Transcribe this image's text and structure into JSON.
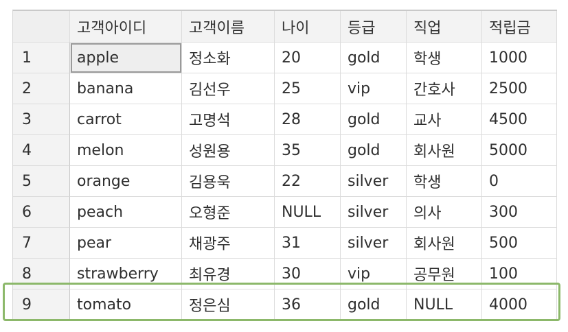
{
  "columns": [
    "고객아이디",
    "고객이름",
    "나이",
    "등급",
    "직업",
    "적립금"
  ],
  "rows": [
    {
      "num": "1",
      "cells": [
        "apple",
        "정소화",
        "20",
        "gold",
        "학생",
        "1000"
      ]
    },
    {
      "num": "2",
      "cells": [
        "banana",
        "김선우",
        "25",
        "vip",
        "간호사",
        "2500"
      ]
    },
    {
      "num": "3",
      "cells": [
        "carrot",
        "고명석",
        "28",
        "gold",
        "교사",
        "4500"
      ]
    },
    {
      "num": "4",
      "cells": [
        "melon",
        "성원용",
        "35",
        "gold",
        "회사원",
        "5000"
      ]
    },
    {
      "num": "5",
      "cells": [
        "orange",
        "김용욱",
        "22",
        "silver",
        "학생",
        "0"
      ]
    },
    {
      "num": "6",
      "cells": [
        "peach",
        "오형준",
        "NULL",
        "silver",
        "의사",
        "300"
      ]
    },
    {
      "num": "7",
      "cells": [
        "pear",
        "채광주",
        "31",
        "silver",
        "회사원",
        "500"
      ]
    },
    {
      "num": "8",
      "cells": [
        "strawberry",
        "최유경",
        "30",
        "vip",
        "공무원",
        "100"
      ]
    },
    {
      "num": "9",
      "cells": [
        "tomato",
        "정은심",
        "36",
        "gold",
        "NULL",
        "4000"
      ]
    }
  ],
  "selected_cell": {
    "row": 1,
    "column": 1
  },
  "highlighted_row": 9,
  "colors": {
    "highlight": "#8cb86a",
    "header_bg": "#f3f3f3",
    "grid_line": "#dcdcdc"
  }
}
